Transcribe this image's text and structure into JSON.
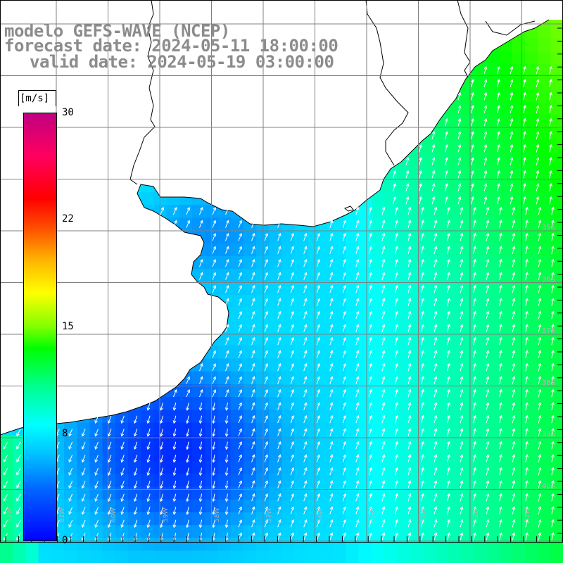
{
  "header": {
    "model": "modelo GEFS-WAVE (NCEP)",
    "forecast": "forecast date: 2024-05-11 18:00:00",
    "valid": "valid date: 2024-05-19 03:00:00"
  },
  "colorbar": {
    "unit": "[m/s]",
    "ticks": [
      "30",
      "22",
      "15",
      "8",
      "0"
    ],
    "tick_values": [
      30,
      22,
      15,
      8,
      0
    ],
    "range": [
      0,
      30
    ],
    "colors": [
      "#0000ff",
      "#00c0ff",
      "#00ffff",
      "#00ff00",
      "#ffff00",
      "#ff0000",
      "#c00080"
    ]
  },
  "map": {
    "land_color": "#ffffff",
    "grid_color": "#808080",
    "arrow_color": "#ffffff",
    "lat_labels": [
      "35S",
      "36S",
      "37S",
      "38S",
      "39S",
      "40S"
    ],
    "lon_labels": [
      "62W",
      "61W",
      "60W",
      "59W",
      "58W",
      "57W",
      "56W",
      "55W",
      "54W",
      "53W",
      "52W",
      "51W"
    ]
  }
}
